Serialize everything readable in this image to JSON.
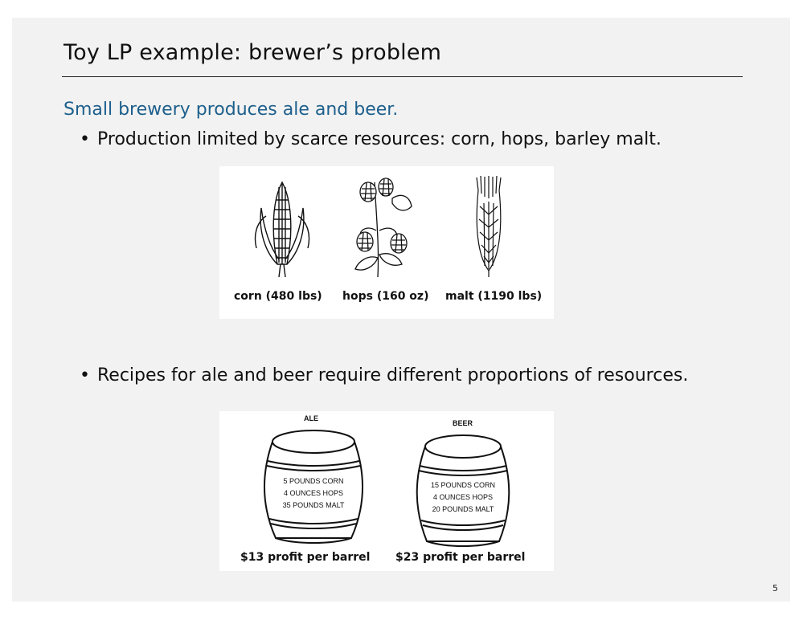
{
  "slide": {
    "title": "Toy LP example:  brewer’s problem",
    "subtitle": "Small brewery produces ale and beer.",
    "bullets": [
      "Production limited by scarce resources:  corn, hops, barley malt.",
      "Recipes for ale and beer require different proportions of resources."
    ],
    "page_number": "5"
  },
  "resources": [
    {
      "label": "corn (480 lbs)",
      "icon": "corn-icon"
    },
    {
      "label": "hops (160 oz)",
      "icon": "hops-icon"
    },
    {
      "label": "malt (1190 lbs)",
      "icon": "malt-icon"
    }
  ],
  "barrels": [
    {
      "header": "ALE",
      "lines": [
        "5 POUNDS CORN",
        "4 OUNCES HOPS",
        "35 POUNDS MALT"
      ],
      "profit": "$13 profit per barrel"
    },
    {
      "header": "BEER",
      "lines": [
        "15 POUNDS CORN",
        "4 OUNCES HOPS",
        "20 POUNDS MALT"
      ],
      "profit": "$23 profit per barrel"
    }
  ]
}
